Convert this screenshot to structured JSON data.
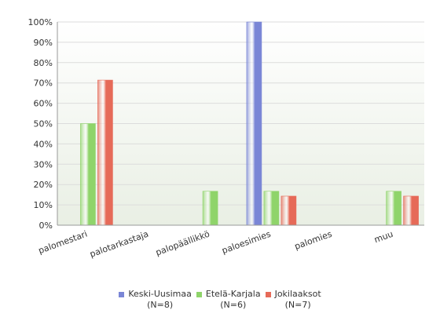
{
  "chart_data": {
    "type": "bar",
    "categories": [
      "palomestari",
      "palotarkastaja",
      "palopäällikkö",
      "paloesimies",
      "palomies",
      "muu"
    ],
    "series": [
      {
        "name": "Keski-Uusimaa",
        "name_line2": "(N=8)",
        "color": "#7a86d6",
        "values": [
          0,
          0,
          0,
          100,
          0,
          0
        ]
      },
      {
        "name": "Etelä-Karjala",
        "name_line2": "(N=6)",
        "color": "#8fd46a",
        "values": [
          50,
          0,
          16.7,
          16.7,
          0,
          16.7
        ]
      },
      {
        "name": "Jokilaaksot",
        "name_line2": "(N=7)",
        "color": "#e66a58",
        "values": [
          71.4,
          0,
          0,
          14.3,
          0,
          14.3
        ]
      }
    ],
    "y_ticks": [
      "0%",
      "10%",
      "20%",
      "30%",
      "40%",
      "50%",
      "60%",
      "70%",
      "80%",
      "90%",
      "100%"
    ],
    "ylim": [
      0,
      100
    ],
    "grid": true,
    "legend_position": "bottom"
  }
}
